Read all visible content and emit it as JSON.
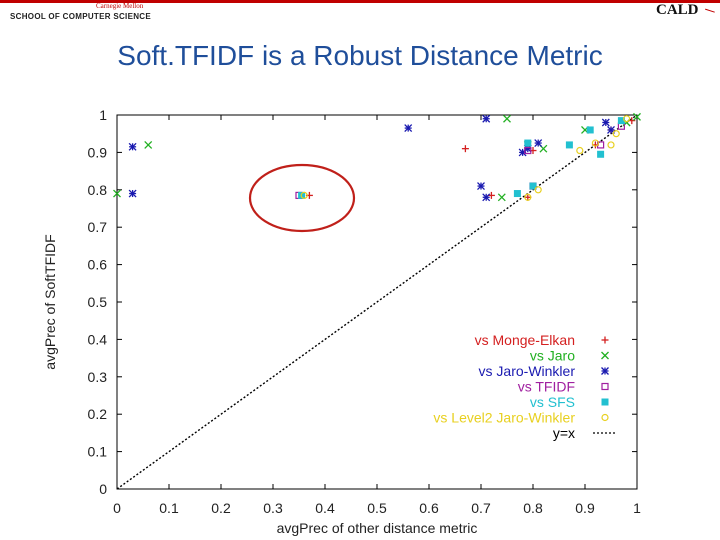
{
  "header": {
    "university": "Carnegie Mellon",
    "school": "SCHOOL OF COMPUTER SCIENCE",
    "logo_right": "CALD"
  },
  "slide": {
    "title": "Soft.TFIDF is a Robust Distance Metric"
  },
  "chart_data": {
    "type": "scatter",
    "xlabel": "avgPrec of other distance metric",
    "ylabel": "avgPrec of SoftTFIDF",
    "xlim": [
      0,
      1
    ],
    "ylim": [
      0,
      1
    ],
    "x_ticks": [
      "0",
      "0.1",
      "0.2",
      "0.3",
      "0.4",
      "0.5",
      "0.6",
      "0.7",
      "0.8",
      "0.9",
      "1"
    ],
    "y_ticks": [
      "0",
      "0.1",
      "0.2",
      "0.3",
      "0.4",
      "0.5",
      "0.6",
      "0.7",
      "0.8",
      "0.9",
      "1"
    ],
    "grid": false,
    "legend_placement": "bottom-right",
    "series": [
      {
        "name": "vs Monge-Elkan",
        "color": "#d42020",
        "marker": "plus",
        "points": [
          [
            0.37,
            0.785
          ],
          [
            0.67,
            0.91
          ],
          [
            0.72,
            0.785
          ],
          [
            0.79,
            0.78
          ],
          [
            0.8,
            0.905
          ],
          [
            0.92,
            0.92
          ],
          [
            0.95,
            0.96
          ],
          [
            0.99,
            0.985
          ]
        ]
      },
      {
        "name": "vs Jaro",
        "color": "#22b022",
        "marker": "x",
        "points": [
          [
            0.0,
            0.79
          ],
          [
            0.06,
            0.92
          ],
          [
            0.75,
            0.99
          ],
          [
            0.74,
            0.78
          ],
          [
            0.79,
            0.92
          ],
          [
            0.82,
            0.91
          ],
          [
            0.9,
            0.96
          ],
          [
            0.98,
            0.98
          ],
          [
            1.0,
            0.995
          ]
        ]
      },
      {
        "name": "vs Jaro-Winkler",
        "color": "#1a1ab0",
        "marker": "star",
        "points": [
          [
            0.03,
            0.79
          ],
          [
            0.03,
            0.915
          ],
          [
            0.56,
            0.965
          ],
          [
            0.71,
            0.99
          ],
          [
            0.7,
            0.81
          ],
          [
            0.71,
            0.78
          ],
          [
            0.78,
            0.9
          ],
          [
            0.79,
            0.91
          ],
          [
            0.81,
            0.925
          ],
          [
            0.94,
            0.98
          ],
          [
            0.95,
            0.96
          ]
        ]
      },
      {
        "name": "vs TFIDF",
        "color": "#a020a0",
        "marker": "square-open",
        "points": [
          [
            0.35,
            0.785
          ],
          [
            0.79,
            0.905
          ],
          [
            0.8,
            0.81
          ],
          [
            0.93,
            0.92
          ],
          [
            0.97,
            0.97
          ]
        ]
      },
      {
        "name": "vs SFS",
        "color": "#22c0d0",
        "marker": "square",
        "points": [
          [
            0.355,
            0.785
          ],
          [
            0.77,
            0.79
          ],
          [
            0.79,
            0.925
          ],
          [
            0.8,
            0.81
          ],
          [
            0.87,
            0.92
          ],
          [
            0.91,
            0.96
          ],
          [
            0.93,
            0.895
          ],
          [
            0.97,
            0.985
          ]
        ]
      },
      {
        "name": "vs Level2 Jaro-Winkler",
        "color": "#e8d020",
        "marker": "circle",
        "points": [
          [
            0.36,
            0.785
          ],
          [
            0.79,
            0.78
          ],
          [
            0.81,
            0.8
          ],
          [
            0.89,
            0.905
          ],
          [
            0.92,
            0.925
          ],
          [
            0.95,
            0.92
          ],
          [
            0.96,
            0.95
          ],
          [
            0.98,
            0.99
          ]
        ]
      },
      {
        "name": "y=x",
        "color": "#000000",
        "marker": "dashed-line",
        "points": [
          [
            0,
            0
          ],
          [
            1,
            1
          ]
        ]
      }
    ]
  }
}
